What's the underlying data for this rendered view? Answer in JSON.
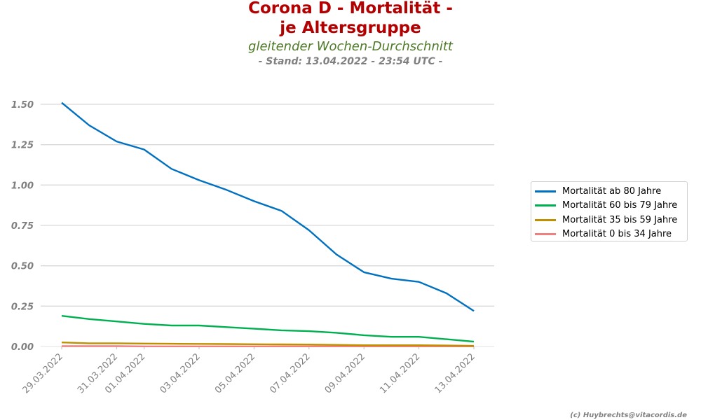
{
  "header": {
    "title_line1": "Corona D - Mortalität -",
    "title_line2": "je Altersgruppe",
    "subtitle": "gleitender Wochen-Durchschnitt",
    "stand": "- Stand: 13.04.2022 - 23:54 UTC -"
  },
  "footer": {
    "credit": "(c) Huybrechts@vitacordis.de"
  },
  "chart_data": {
    "type": "line",
    "title": "Corona D - Mortalität - je Altersgruppe",
    "subtitle": "gleitender Wochen-Durchschnitt",
    "xlabel": "",
    "ylabel": "",
    "x": [
      "29.03.2022",
      "30.03.2022",
      "31.03.2022",
      "01.04.2022",
      "02.04.2022",
      "03.04.2022",
      "04.04.2022",
      "05.04.2022",
      "06.04.2022",
      "07.04.2022",
      "08.04.2022",
      "09.04.2022",
      "10.04.2022",
      "11.04.2022",
      "12.04.2022",
      "13.04.2022"
    ],
    "xticks": [
      "29.03.2022",
      "31.03.2022",
      "01.04.2022",
      "03.04.2022",
      "05.04.2022",
      "07.04.2022",
      "09.04.2022",
      "11.04.2022",
      "13.04.2022"
    ],
    "xtick_indices": [
      0,
      2,
      3,
      5,
      7,
      9,
      11,
      13,
      15
    ],
    "ylim": [
      0,
      1.55
    ],
    "yticks": [
      "0.00",
      "0.25",
      "0.50",
      "0.75",
      "1.00",
      "1.25",
      "1.50"
    ],
    "grid": "horizontal",
    "legend_position": "right",
    "series": [
      {
        "name": "Mortalität ab 80 Jahre",
        "color": "#0070c0",
        "values": [
          1.51,
          1.37,
          1.27,
          1.22,
          1.1,
          1.03,
          0.97,
          0.9,
          0.84,
          0.72,
          0.57,
          0.46,
          0.42,
          0.4,
          0.33,
          0.22
        ]
      },
      {
        "name": "Mortalität 60 bis 79 Jahre",
        "color": "#00b050",
        "values": [
          0.19,
          0.17,
          0.155,
          0.14,
          0.13,
          0.13,
          0.12,
          0.11,
          0.1,
          0.095,
          0.085,
          0.07,
          0.06,
          0.06,
          0.045,
          0.03
        ]
      },
      {
        "name": "Mortalität 35 bis 59 Jahre",
        "color": "#bf9000",
        "values": [
          0.025,
          0.02,
          0.02,
          0.018,
          0.017,
          0.016,
          0.015,
          0.014,
          0.013,
          0.012,
          0.01,
          0.008,
          0.008,
          0.008,
          0.006,
          0.004
        ]
      },
      {
        "name": "Mortalität 0 bis 34 Jahre",
        "color": "#f08080",
        "values": [
          0.002,
          0.002,
          0.002,
          0.001,
          0.001,
          0.001,
          0.001,
          0.001,
          0.001,
          0.001,
          0.001,
          0.001,
          0.001,
          0.001,
          0.001,
          0.001
        ]
      }
    ]
  }
}
